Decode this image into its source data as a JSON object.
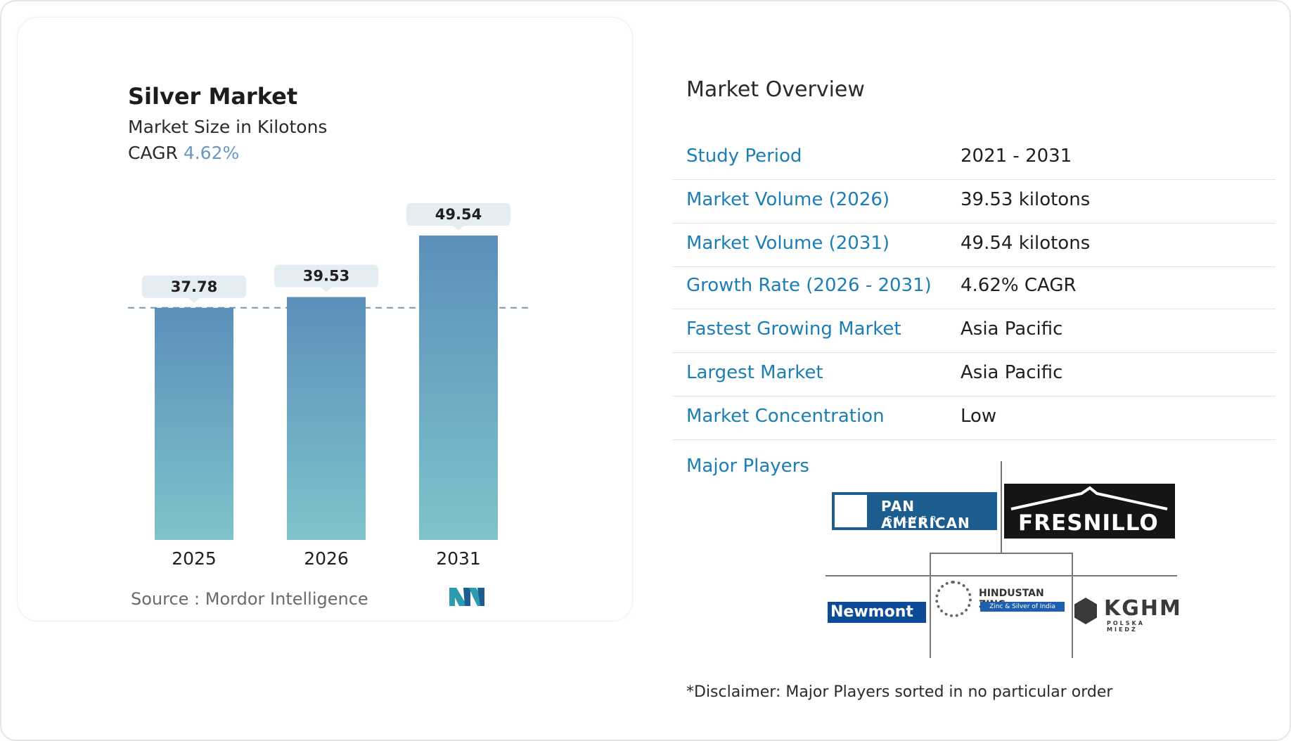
{
  "chart_data": {
    "type": "bar",
    "title": "Silver Market",
    "subtitle": "Market Size in Kilotons",
    "cagr_label": "CAGR",
    "cagr_value": "4.62%",
    "categories": [
      "2025",
      "2026",
      "2031"
    ],
    "values": [
      37.78,
      39.53,
      49.54
    ],
    "value_labels": [
      "37.78",
      "39.53",
      "49.54"
    ],
    "ylim": [
      0,
      49.54
    ],
    "reference_line": 37.78,
    "grid": false,
    "colors": {
      "bar_top": "#5b8fba",
      "bar_bottom": "#7fc3cb",
      "label_bg": "#e4eef2",
      "dash": "#6f9ab8"
    }
  },
  "source": {
    "text": "Source :  Mordor Intelligence"
  },
  "overview": {
    "title": "Market Overview",
    "rows": [
      {
        "label": "Study Period",
        "value": "2021 - 2031"
      },
      {
        "label": "Market Volume (2026)",
        "value": "39.53 kilotons"
      },
      {
        "label": "Market Volume (2031)",
        "value": "49.54 kilotons"
      },
      {
        "label": "Growth Rate (2026 - 2031)",
        "value": "4.62% CAGR"
      },
      {
        "label": "Fastest Growing Market",
        "value": "Asia Pacific"
      },
      {
        "label": "Largest Market",
        "value": "Asia Pacific"
      },
      {
        "label": "Market Concentration",
        "value": "Low"
      }
    ]
  },
  "players": {
    "title": "Major Players",
    "logos": {
      "pan_american_line1": "PAN AMERICAN",
      "pan_american_line2": "SILVER",
      "fresnillo": "FRESNILLO",
      "newmont": "Newmont",
      "hindustan_line1": "HINDUSTAN ZINC",
      "hindustan_line2": "Zinc & Silver of India",
      "kghm_line1": "KGHM",
      "kghm_line2": "POLSKA MIEDŹ"
    }
  },
  "disclaimer": "*Disclaimer: Major Players sorted in no particular order"
}
